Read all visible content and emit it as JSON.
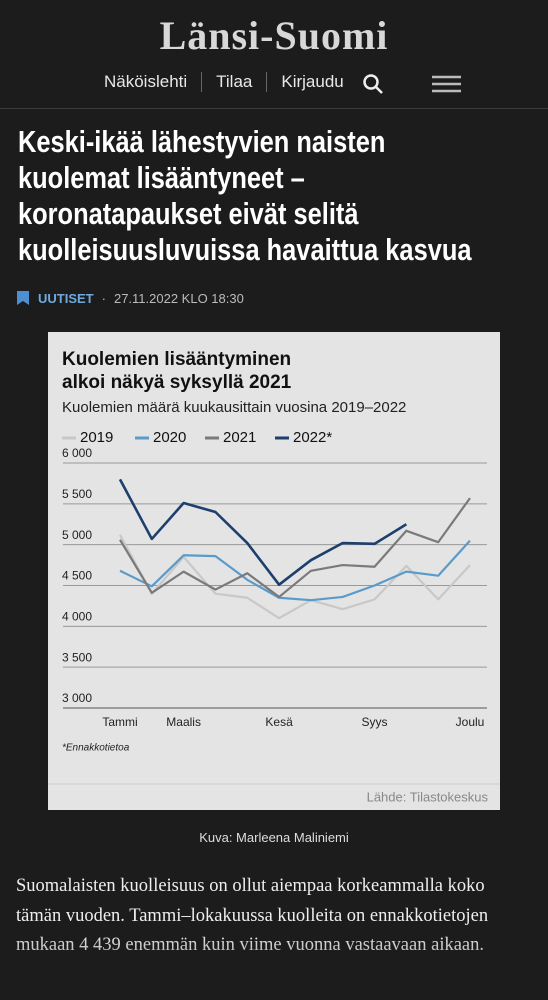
{
  "header": {
    "logo": "Länsi-Suomi",
    "nav": [
      "Näköislehti",
      "Tilaa",
      "Kirjaudu"
    ]
  },
  "article": {
    "headline": [
      "Keski-ikää lähestyvien naisten",
      "kuolemat lisääntyneet –",
      "koronatapaukset eivät selitä",
      "kuolleisuusluvuissa havaittua  kasvua"
    ],
    "section": "UUTISET",
    "date": "27.11.2022 KLO 18:30",
    "caption": "Kuva: Marleena Maliniemi",
    "body": "Suomalaisten kuolleisuus on ollut aiempaa korkeammalla koko tämän vuoden. Tammi–lokakuussa kuolleita on ennakkotietojen mukaan 4 439 enemmän kuin viime vuonna vastaavaan aikaan."
  },
  "chart_data": {
    "type": "line",
    "title": [
      "Kuolemien lisääntyminen",
      "alkoi näkyä syksyllä 2021"
    ],
    "subtitle": "Kuolemien määrä kuukausittain vuosina 2019–2022",
    "note": "*Ennakkotietoa",
    "source": "Lähde: Tilastokeskus",
    "categories": [
      "Tammi",
      null,
      "Maalis",
      null,
      null,
      "Kesä",
      null,
      null,
      "Syys",
      null,
      null,
      "Joulu"
    ],
    "series": [
      {
        "name": "2019",
        "color": "#c8c8c8",
        "values": [
          5120,
          4400,
          4850,
          4400,
          4350,
          4100,
          4320,
          4210,
          4330,
          4740,
          4330,
          4750
        ]
      },
      {
        "name": "2020",
        "color": "#5b9bc9",
        "values": [
          4680,
          4490,
          4870,
          4860,
          4570,
          4350,
          4320,
          4360,
          4500,
          4670,
          4620,
          5050
        ]
      },
      {
        "name": "2021",
        "color": "#7a7a7a",
        "values": [
          5060,
          4410,
          4670,
          4450,
          4650,
          4360,
          4680,
          4750,
          4730,
          5170,
          5030,
          5570
        ]
      },
      {
        "name": "2022*",
        "color": "#1d3f6e",
        "values": [
          5800,
          5070,
          5510,
          5400,
          5020,
          4510,
          4810,
          5020,
          5010,
          5250,
          null,
          null
        ]
      }
    ],
    "ylim": [
      3000,
      6000
    ],
    "yticks": [
      {
        "value": 3000,
        "label": "3 000"
      },
      {
        "value": 3500,
        "label": "3 500"
      },
      {
        "value": 4000,
        "label": "4 000"
      },
      {
        "value": 4500,
        "label": "4 500"
      },
      {
        "value": 5000,
        "label": "5 000"
      },
      {
        "value": 5500,
        "label": "5 500"
      },
      {
        "value": 6000,
        "label": "6 000"
      }
    ],
    "grid": true
  }
}
